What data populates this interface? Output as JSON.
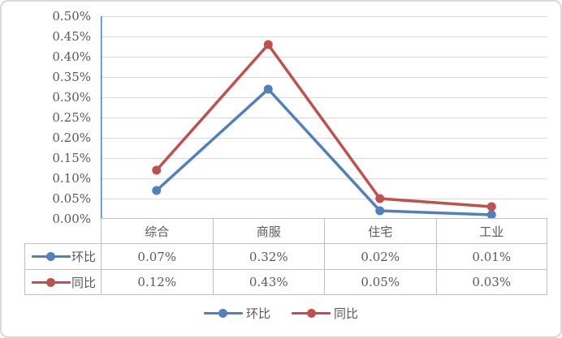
{
  "chart_data": {
    "type": "line",
    "categories": [
      "综合",
      "商服",
      "住宅",
      "工业"
    ],
    "series": [
      {
        "name": "环比",
        "values": [
          0.07,
          0.32,
          0.02,
          0.01
        ],
        "color": "#4F81BD"
      },
      {
        "name": "同比",
        "values": [
          0.12,
          0.43,
          0.05,
          0.03
        ],
        "color": "#C0504D"
      }
    ],
    "data_table": {
      "rows": [
        {
          "name": "环比",
          "values": [
            "0.07%",
            "0.32%",
            "0.02%",
            "0.01%"
          ]
        },
        {
          "name": "同比",
          "values": [
            "0.12%",
            "0.43%",
            "0.05%",
            "0.03%"
          ]
        }
      ]
    },
    "title": "",
    "xlabel": "",
    "ylabel": "",
    "ylim": [
      0,
      0.5
    ],
    "ytick_step": 0.05,
    "ytick_labels": [
      "0.50%",
      "0.45%",
      "0.40%",
      "0.35%",
      "0.30%",
      "0.25%",
      "0.20%",
      "0.15%",
      "0.10%",
      "0.05%",
      "0.00%"
    ],
    "grid": true,
    "legend_position": "bottom",
    "legend_items": [
      "环比",
      "同比"
    ],
    "colors": {
      "axis_line": "#4F81BD",
      "gridline": "#D9D9D9",
      "table_border": "#BFBFBF",
      "text": "#595959",
      "frame_border": "#D9D9D9",
      "background": "#FFFFFF"
    }
  }
}
